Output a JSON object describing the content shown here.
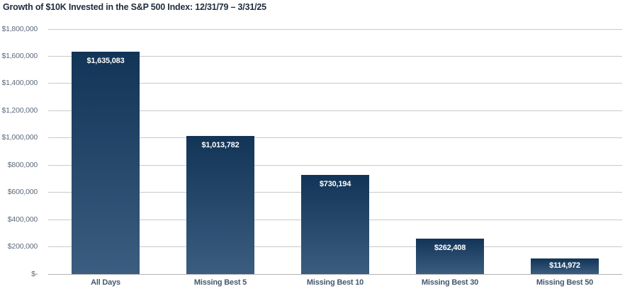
{
  "chart_data": {
    "type": "bar",
    "title": "Growth of $10K Invested in the S&P 500 Index: 12/31/79 – 3/31/25",
    "categories": [
      "All Days",
      "Missing Best 5",
      "Missing Best 10",
      "Missing Best 30",
      "Missing Best 50"
    ],
    "values": [
      1635083,
      1013782,
      730194,
      262408,
      114972
    ],
    "value_labels": [
      "$1,635,083",
      "$1,013,782",
      "$730,194",
      "$262,408",
      "$114,972"
    ],
    "y_ticks": [
      "$1,800,000",
      "$1,600,000",
      "$1,400,000",
      "$1,200,000",
      "$1,000,000",
      "$800,000",
      "$600,000",
      "$400,000",
      "$200,000",
      "$-"
    ],
    "ylim": [
      0,
      1800000
    ],
    "grid": "horizontal",
    "legend": "none",
    "xlabel": "",
    "ylabel": "",
    "colors": {
      "bar_gradient_top": "#123457",
      "bar_gradient_bottom": "#3a5d80",
      "bar_value_label": "#ffffff",
      "gridline": "#c9c9c9",
      "title_text": "#1e2d3e",
      "ytick_text": "#5d6a7a",
      "category_text": "#46586d",
      "background": "#ffffff"
    }
  }
}
